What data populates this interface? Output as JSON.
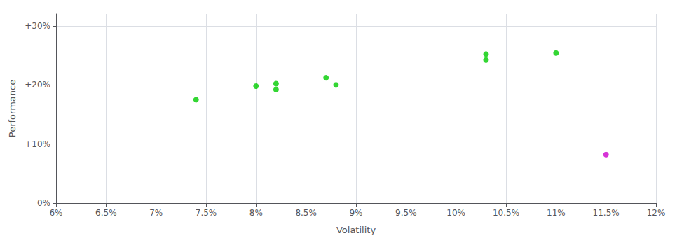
{
  "chart_data": {
    "type": "scatter",
    "xlabel": "Volatility",
    "ylabel": "Performance",
    "xlim": [
      0.06,
      0.12
    ],
    "ylim": [
      0.0,
      0.32
    ],
    "xticks": [
      {
        "value": 0.06,
        "label": "6%"
      },
      {
        "value": 0.065,
        "label": "6.5%"
      },
      {
        "value": 0.07,
        "label": "7%"
      },
      {
        "value": 0.075,
        "label": "7.5%"
      },
      {
        "value": 0.08,
        "label": "8%"
      },
      {
        "value": 0.085,
        "label": "8.5%"
      },
      {
        "value": 0.09,
        "label": "9%"
      },
      {
        "value": 0.095,
        "label": "9.5%"
      },
      {
        "value": 0.1,
        "label": "10%"
      },
      {
        "value": 0.105,
        "label": "10.5%"
      },
      {
        "value": 0.11,
        "label": "11%"
      },
      {
        "value": 0.115,
        "label": "11.5%"
      },
      {
        "value": 0.12,
        "label": "12%"
      }
    ],
    "yticks": [
      {
        "value": 0.0,
        "label": "0%"
      },
      {
        "value": 0.1,
        "label": "+10%"
      },
      {
        "value": 0.2,
        "label": "+20%"
      },
      {
        "value": 0.3,
        "label": "+30%"
      }
    ],
    "grid": true,
    "series": [
      {
        "color": "#00cc00",
        "x": [
          0.074,
          0.08,
          0.082,
          0.082,
          0.087,
          0.088,
          0.103,
          0.103,
          0.11
        ],
        "values": [
          0.175,
          0.198,
          0.202,
          0.192,
          0.212,
          0.2,
          0.252,
          0.242,
          0.254
        ]
      },
      {
        "color": "#cc00cc",
        "x": [
          0.115
        ],
        "values": [
          0.082
        ]
      }
    ]
  }
}
